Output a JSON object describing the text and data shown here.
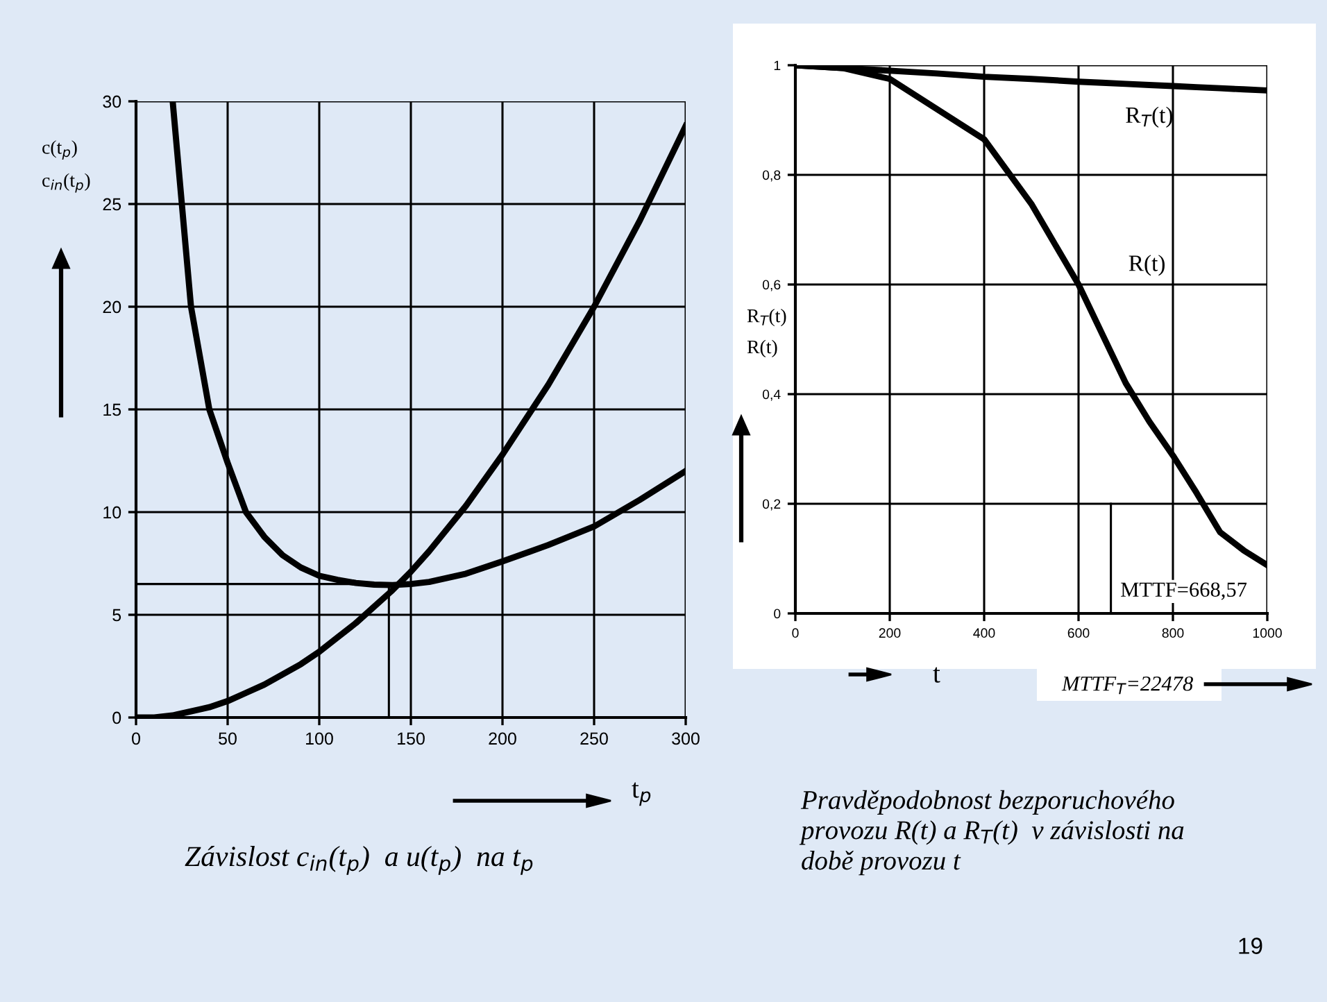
{
  "chart_data": [
    {
      "type": "line",
      "xlabel": "t$_{p}$",
      "ylabel": "c(t$_{p}$)\nc$_{in}$(t$_{p}$)",
      "x": [
        0,
        10,
        20,
        30,
        40,
        50,
        60,
        70,
        80,
        90,
        100,
        110,
        120,
        130,
        140,
        150,
        160,
        180,
        200,
        225,
        250,
        275,
        300
      ],
      "series": [
        {
          "color": "#000000",
          "values": [
            null,
            null,
            30,
            20,
            15,
            12.4,
            10,
            8.8,
            7.9,
            7.3,
            6.9,
            6.7,
            6.55,
            6.47,
            6.45,
            6.5,
            6.6,
            7,
            7.6,
            8.4,
            9.3,
            10.6,
            12
          ]
        },
        {
          "color": "#000000",
          "values": [
            0,
            0,
            0.1,
            0.3,
            0.5,
            0.8,
            1.2,
            1.6,
            2.1,
            2.6,
            3.2,
            3.9,
            4.6,
            5.4,
            6.2,
            7.1,
            8.1,
            10.3,
            12.8,
            16.2,
            20,
            24.2,
            28.8
          ]
        }
      ],
      "xlim": [
        0,
        300
      ],
      "ylim": [
        0,
        30
      ],
      "xticks": [
        0,
        50,
        100,
        150,
        200,
        250,
        300
      ],
      "yticks": [
        0,
        5,
        10,
        15,
        20,
        25,
        30
      ],
      "grid": true,
      "line_style": "solid",
      "marker": "none",
      "ref_lines": [
        {
          "axis": "y",
          "value": 6.5,
          "color": "#000000"
        },
        {
          "axis": "x",
          "value": 138,
          "color": "#000000"
        }
      ],
      "annotations": [
        "Závislost c$_{in}$(t$_{p}$)  a u(t$_{p}$)  na t$_{p}$"
      ]
    },
    {
      "type": "line",
      "xlabel": "t",
      "ylabel": "R$_{T}$(t)\nR(t)",
      "x": [
        0,
        100,
        200,
        300,
        400,
        500,
        600,
        650,
        700,
        750,
        800,
        850,
        900,
        950,
        1000
      ],
      "series": [
        {
          "name": "R$_{T}$(t)",
          "color": "#000000",
          "values": [
            1,
            0.995,
            0.99,
            0.985,
            0.979,
            0.975,
            0.97,
            0.968,
            0.966,
            0.964,
            0.962,
            0.96,
            0.958,
            0.956,
            0.954
          ]
        },
        {
          "name": "R(t)",
          "color": "#000000",
          "values": [
            1,
            0.995,
            0.975,
            0.92,
            0.865,
            0.747,
            0.6,
            0.51,
            0.42,
            0.35,
            0.288,
            0.22,
            0.148,
            0.115,
            0.088
          ]
        }
      ],
      "xlim": [
        0,
        1000
      ],
      "ylim": [
        0,
        1
      ],
      "xticks": [
        0,
        200,
        400,
        600,
        800,
        1000
      ],
      "yticks": [
        0,
        {
          "value": 0.2,
          "label": "0,2"
        },
        {
          "value": 0.4,
          "label": "0,4"
        },
        {
          "value": 0.6,
          "label": "0,6"
        },
        {
          "value": 0.8,
          "label": "0,8"
        },
        1
      ],
      "grid": true,
      "line_style": "solid",
      "marker": "none",
      "ref_lines": [
        {
          "axis": "x",
          "value": 668.57,
          "label": "MTTF=668,57",
          "color": "#000000"
        }
      ],
      "annotations": [
        "MTTF$_{T}$=22478",
        "Pravděpodobnost bezporuchového\nprovozu R(t) a R$_{T}$(t)  v závislosti na\ndobě provozu t",
        "19"
      ]
    }
  ]
}
